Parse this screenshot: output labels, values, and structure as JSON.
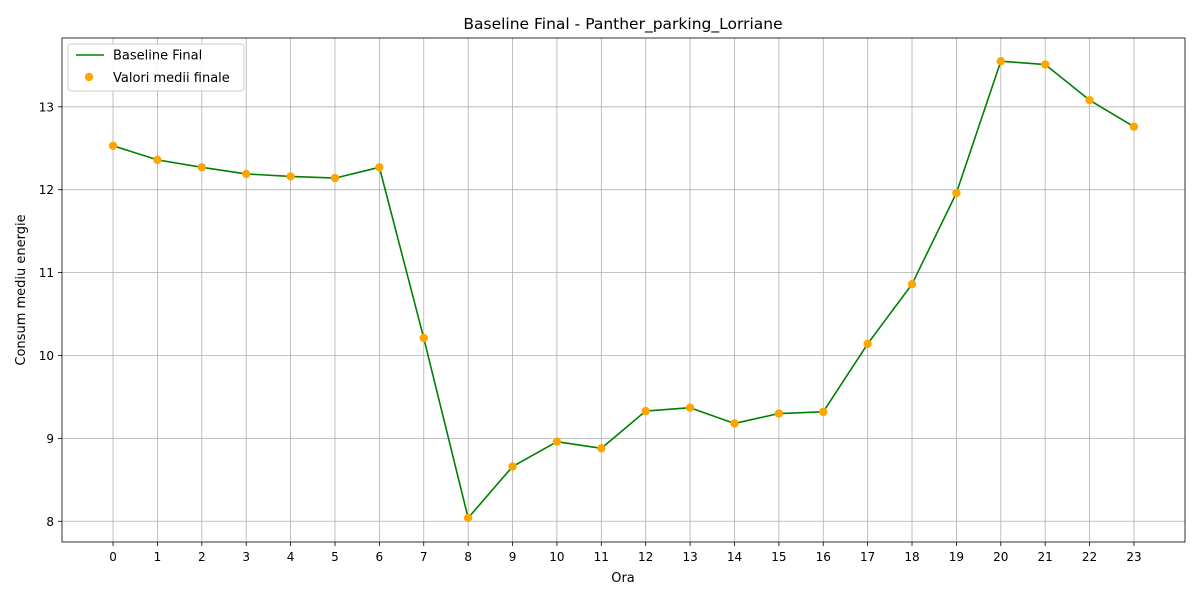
{
  "chart_data": {
    "type": "line",
    "title": "Baseline Final - Panther_parking_Lorriane",
    "xlabel": "Ora",
    "ylabel": "Consum mediu energie",
    "x": [
      0,
      1,
      2,
      3,
      4,
      5,
      6,
      7,
      8,
      9,
      10,
      11,
      12,
      13,
      14,
      15,
      16,
      17,
      18,
      19,
      20,
      21,
      22,
      23
    ],
    "series": [
      {
        "name": "Baseline Final",
        "kind": "line",
        "color": "#008000",
        "values": [
          12.53,
          12.36,
          12.27,
          12.19,
          12.16,
          12.14,
          12.27,
          10.21,
          8.04,
          8.66,
          8.96,
          8.88,
          9.33,
          9.37,
          9.18,
          9.3,
          9.32,
          10.14,
          10.86,
          11.96,
          13.55,
          13.51,
          13.08,
          12.76
        ]
      },
      {
        "name": "Valori medii finale",
        "kind": "scatter",
        "color": "#FFA500",
        "values": [
          12.53,
          12.36,
          12.27,
          12.19,
          12.16,
          12.14,
          12.27,
          10.21,
          8.04,
          8.66,
          8.96,
          8.88,
          9.33,
          9.37,
          9.18,
          9.3,
          9.32,
          10.14,
          10.86,
          11.96,
          13.55,
          13.51,
          13.08,
          12.76
        ]
      }
    ],
    "xlim": [
      -1.15,
      24.15
    ],
    "ylim": [
      7.75,
      13.83
    ],
    "yticks": [
      8,
      9,
      10,
      11,
      12,
      13
    ],
    "xticks": [
      0,
      1,
      2,
      3,
      4,
      5,
      6,
      7,
      8,
      9,
      10,
      11,
      12,
      13,
      14,
      15,
      16,
      17,
      18,
      19,
      20,
      21,
      22,
      23
    ],
    "grid": true,
    "legend_position": "top-left"
  }
}
